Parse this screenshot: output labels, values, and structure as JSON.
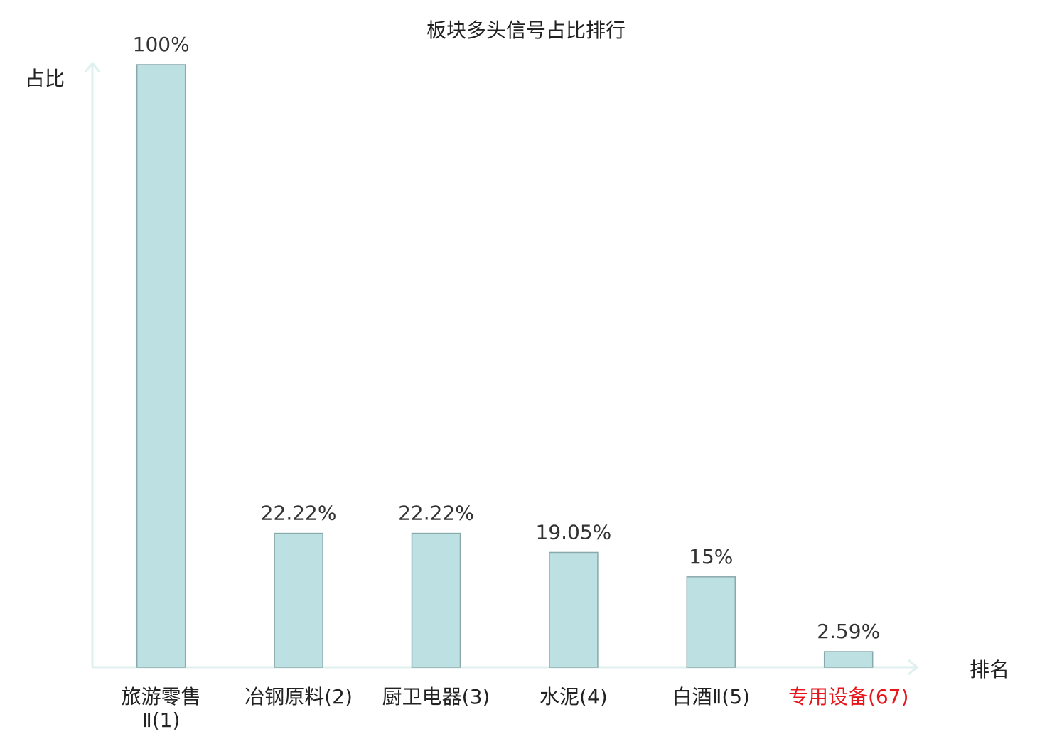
{
  "chart_data": {
    "type": "bar",
    "title": "板块多头信号占比排行",
    "y_label": "占比",
    "x_label": "排名",
    "categories": [
      "旅游零售Ⅱ(1)",
      "冶钢原料(2)",
      "厨卫电器(3)",
      "水泥(4)",
      "白酒Ⅱ(5)",
      "专用设备(67)"
    ],
    "values": [
      100,
      22.22,
      22.22,
      19.05,
      15,
      2.59
    ],
    "value_labels": [
      "100%",
      "22.22%",
      "22.22%",
      "19.05%",
      "15%",
      "2.59%"
    ],
    "label_colors": [
      "#222222",
      "#222222",
      "#222222",
      "#222222",
      "#222222",
      "#e8161b"
    ],
    "color": "#bde0e2",
    "edge_color": "#8aa9ac",
    "axis_color": "#dff1ef",
    "ylim": [
      0,
      100
    ]
  }
}
